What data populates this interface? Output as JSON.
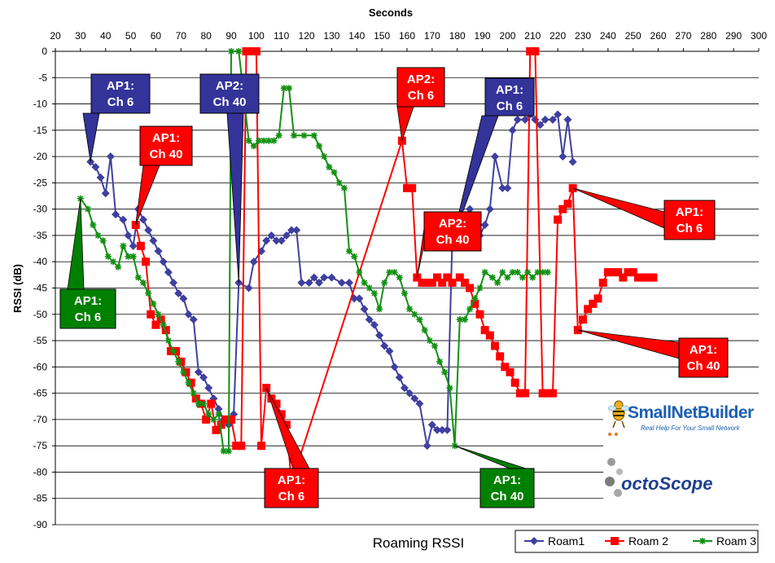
{
  "chart_data": {
    "type": "line",
    "title": "Roaming RSSI",
    "xlabel": "Seconds",
    "ylabel": "RSSI (dB)",
    "xlim": [
      20,
      300
    ],
    "ylim": [
      -90,
      0
    ],
    "xticks": [
      20,
      30,
      40,
      50,
      60,
      70,
      80,
      90,
      100,
      110,
      120,
      130,
      140,
      150,
      160,
      170,
      180,
      190,
      200,
      210,
      220,
      230,
      240,
      250,
      260,
      270,
      280,
      290,
      300
    ],
    "yticks": [
      0,
      -5,
      -10,
      -15,
      -20,
      -25,
      -30,
      -35,
      -40,
      -45,
      -50,
      -55,
      -60,
      -65,
      -70,
      -75,
      -80,
      -85,
      -90
    ],
    "legend_position": "bottom-right",
    "grid": true,
    "series": [
      {
        "name": "Roam1",
        "color": "#3f3f9f",
        "marker": "diamond",
        "points": [
          [
            34,
            -21
          ],
          [
            36,
            -22
          ],
          [
            38,
            -24
          ],
          [
            40,
            -27
          ],
          [
            42,
            -20
          ],
          [
            44,
            -31
          ],
          [
            47,
            -32
          ],
          [
            49,
            -35
          ],
          [
            51,
            -37
          ],
          [
            53,
            -30
          ],
          [
            55,
            -32
          ],
          [
            57,
            -34
          ],
          [
            59,
            -36
          ],
          [
            61,
            -38
          ],
          [
            63,
            -40
          ],
          [
            65,
            -42
          ],
          [
            67,
            -44
          ],
          [
            69,
            -46
          ],
          [
            71,
            -47
          ],
          [
            73,
            -50
          ],
          [
            75,
            -51
          ],
          [
            77,
            -61
          ],
          [
            79,
            -62
          ],
          [
            81,
            -64
          ],
          [
            83,
            -66
          ],
          [
            85,
            -68
          ],
          [
            87,
            -70
          ],
          [
            89,
            -71
          ],
          [
            91,
            -69
          ],
          [
            93,
            -44
          ],
          [
            97,
            -45
          ],
          [
            99,
            -40
          ],
          [
            102,
            -38
          ],
          [
            104,
            -36
          ],
          [
            106,
            -35
          ],
          [
            108,
            -36
          ],
          [
            110,
            -36
          ],
          [
            112,
            -35
          ],
          [
            114,
            -34
          ],
          [
            116,
            -34
          ],
          [
            118,
            -44
          ],
          [
            121,
            -44
          ],
          [
            123,
            -43
          ],
          [
            125,
            -44
          ],
          [
            127,
            -43
          ],
          [
            130,
            -43
          ],
          [
            134,
            -44
          ],
          [
            137,
            -44
          ],
          [
            139,
            -47
          ],
          [
            141,
            -47
          ],
          [
            143,
            -49
          ],
          [
            145,
            -51
          ],
          [
            147,
            -52
          ],
          [
            149,
            -54
          ],
          [
            151,
            -56
          ],
          [
            153,
            -57
          ],
          [
            155,
            -60
          ],
          [
            157,
            -62
          ],
          [
            159,
            -64
          ],
          [
            161,
            -65
          ],
          [
            163,
            -66
          ],
          [
            165,
            -67
          ],
          [
            168,
            -75
          ],
          [
            170,
            -71
          ],
          [
            172,
            -72
          ],
          [
            174,
            -72
          ],
          [
            176,
            -72
          ],
          [
            178,
            -36
          ],
          [
            180,
            -34
          ],
          [
            182,
            -33
          ],
          [
            185,
            -30
          ],
          [
            187,
            -36
          ],
          [
            189,
            -35
          ],
          [
            191,
            -33
          ],
          [
            193,
            -30
          ],
          [
            195,
            -20
          ],
          [
            198,
            -26
          ],
          [
            200,
            -26
          ],
          [
            202,
            -15
          ],
          [
            204,
            -13
          ],
          [
            207,
            -13
          ],
          [
            209,
            -12
          ],
          [
            211,
            -13
          ],
          [
            213,
            -14
          ],
          [
            215,
            -13
          ],
          [
            218,
            -13
          ],
          [
            220,
            -12
          ],
          [
            222,
            -20
          ],
          [
            224,
            -13
          ],
          [
            226,
            -21
          ]
        ]
      },
      {
        "name": "Roam 2",
        "color": "#ff0000",
        "marker": "square",
        "points": [
          [
            52,
            -33
          ],
          [
            54,
            -37
          ],
          [
            56,
            -40
          ],
          [
            58,
            -50
          ],
          [
            60,
            -52
          ],
          [
            62,
            -51
          ],
          [
            64,
            -53
          ],
          [
            66,
            -57
          ],
          [
            68,
            -57
          ],
          [
            70,
            -59
          ],
          [
            72,
            -61
          ],
          [
            74,
            -63
          ],
          [
            76,
            -66
          ],
          [
            78,
            -67
          ],
          [
            80,
            -70
          ],
          [
            82,
            -67
          ],
          [
            84,
            -72
          ],
          [
            86,
            -71
          ],
          [
            88,
            -70
          ],
          [
            90,
            -70
          ],
          [
            92,
            -75
          ],
          [
            94,
            -75
          ],
          [
            96,
            0
          ],
          [
            98,
            0
          ],
          [
            100,
            0
          ],
          [
            102,
            -75
          ],
          [
            104,
            -64
          ],
          [
            106,
            -66
          ],
          [
            108,
            -67
          ],
          [
            110,
            -69
          ],
          [
            112,
            -71
          ],
          [
            114,
            -82
          ],
          [
            158,
            -17
          ],
          [
            160,
            -26
          ],
          [
            162,
            -26
          ],
          [
            164,
            -43
          ],
          [
            166,
            -44
          ],
          [
            168,
            -44
          ],
          [
            170,
            -44
          ],
          [
            172,
            -43
          ],
          [
            174,
            -44
          ],
          [
            176,
            -43
          ],
          [
            178,
            -44
          ],
          [
            181,
            -43
          ],
          [
            183,
            -44
          ],
          [
            185,
            -45
          ],
          [
            187,
            -48
          ],
          [
            189,
            -50
          ],
          [
            191,
            -53
          ],
          [
            193,
            -54
          ],
          [
            195,
            -56
          ],
          [
            197,
            -58
          ],
          [
            199,
            -60
          ],
          [
            201,
            -61
          ],
          [
            203,
            -63
          ],
          [
            205,
            -65
          ],
          [
            207,
            -65
          ],
          [
            209,
            0
          ],
          [
            211,
            0
          ],
          [
            214,
            -65
          ],
          [
            216,
            -65
          ],
          [
            218,
            -65
          ],
          [
            220,
            -32
          ],
          [
            222,
            -30
          ],
          [
            224,
            -29
          ],
          [
            226,
            -26
          ],
          [
            228,
            -53
          ],
          [
            230,
            -51
          ],
          [
            232,
            -49
          ],
          [
            234,
            -48
          ],
          [
            236,
            -47
          ],
          [
            238,
            -44
          ],
          [
            240,
            -42
          ],
          [
            242,
            -42
          ],
          [
            244,
            -42
          ],
          [
            246,
            -43
          ],
          [
            248,
            -42
          ],
          [
            250,
            -42
          ],
          [
            252,
            -43
          ],
          [
            254,
            -43
          ],
          [
            256,
            -43
          ],
          [
            258,
            -43
          ]
        ]
      },
      {
        "name": "Roam 3",
        "color": "#129012",
        "marker": "star",
        "points": [
          [
            30,
            -28
          ],
          [
            33,
            -30
          ],
          [
            35,
            -33
          ],
          [
            37,
            -35
          ],
          [
            39,
            -36
          ],
          [
            41,
            -39
          ],
          [
            43,
            -40
          ],
          [
            45,
            -41
          ],
          [
            47,
            -37
          ],
          [
            49,
            -39
          ],
          [
            51,
            -39
          ],
          [
            53,
            -43
          ],
          [
            55,
            -44
          ],
          [
            57,
            -46
          ],
          [
            59,
            -48
          ],
          [
            61,
            -50
          ],
          [
            63,
            -52
          ],
          [
            65,
            -55
          ],
          [
            67,
            -57
          ],
          [
            69,
            -59
          ],
          [
            71,
            -61
          ],
          [
            73,
            -63
          ],
          [
            75,
            -65
          ],
          [
            77,
            -67
          ],
          [
            79,
            -67
          ],
          [
            81,
            -69
          ],
          [
            83,
            -70
          ],
          [
            85,
            -69
          ],
          [
            87,
            -76
          ],
          [
            89,
            -76
          ],
          [
            90,
            0
          ],
          [
            93,
            0
          ],
          [
            97,
            -17
          ],
          [
            99,
            -18
          ],
          [
            101,
            -17
          ],
          [
            103,
            -17
          ],
          [
            105,
            -17
          ],
          [
            107,
            -17
          ],
          [
            109,
            -16
          ],
          [
            111,
            -7
          ],
          [
            113,
            -7
          ],
          [
            115,
            -16
          ],
          [
            119,
            -16
          ],
          [
            123,
            -16
          ],
          [
            125,
            -18
          ],
          [
            127,
            -20
          ],
          [
            129,
            -22
          ],
          [
            131,
            -23
          ],
          [
            133,
            -25
          ],
          [
            135,
            -26
          ],
          [
            137,
            -38
          ],
          [
            139,
            -39
          ],
          [
            141,
            -42
          ],
          [
            143,
            -44
          ],
          [
            145,
            -45
          ],
          [
            147,
            -46
          ],
          [
            149,
            -49
          ],
          [
            151,
            -44
          ],
          [
            153,
            -42
          ],
          [
            155,
            -42
          ],
          [
            157,
            -43
          ],
          [
            159,
            -46
          ],
          [
            161,
            -49
          ],
          [
            163,
            -50
          ],
          [
            165,
            -51
          ],
          [
            167,
            -53
          ],
          [
            169,
            -55
          ],
          [
            171,
            -56
          ],
          [
            173,
            -59
          ],
          [
            175,
            -61
          ],
          [
            177,
            -64
          ],
          [
            179,
            -75
          ],
          [
            181,
            -51
          ],
          [
            183,
            -51
          ],
          [
            185,
            -49
          ],
          [
            187,
            -47
          ],
          [
            189,
            -45
          ],
          [
            191,
            -42
          ],
          [
            194,
            -43
          ],
          [
            196,
            -44
          ],
          [
            198,
            -42
          ],
          [
            200,
            -43
          ],
          [
            202,
            -42
          ],
          [
            204,
            -42
          ],
          [
            206,
            -43
          ],
          [
            208,
            -42
          ],
          [
            210,
            -43
          ],
          [
            212,
            -42
          ],
          [
            214,
            -42
          ],
          [
            216,
            -42
          ]
        ]
      }
    ],
    "annotations": [
      {
        "line1": "AP1:",
        "line2": "Ch 6",
        "color": "#333399",
        "target": [
          34,
          -21
        ]
      },
      {
        "line1": "AP1:",
        "line2": "Ch 40",
        "color": "#ff0000",
        "target": [
          52,
          -33
        ]
      },
      {
        "line1": "AP2:",
        "line2": "Ch 40",
        "color": "#333399",
        "target": [
          93,
          -44
        ]
      },
      {
        "line1": "AP2:",
        "line2": "Ch 6",
        "color": "#ff0000",
        "target": [
          158,
          -17
        ]
      },
      {
        "line1": "AP1:",
        "line2": "Ch 6",
        "color": "#333399",
        "target": [
          178,
          -36
        ]
      },
      {
        "line1": "AP1:",
        "line2": "Ch 6",
        "color": "#008000",
        "target": [
          30,
          -28
        ]
      },
      {
        "line1": "AP2:",
        "line2": "Ch 40",
        "color": "#ff0000",
        "target": [
          164,
          -43
        ]
      },
      {
        "line1": "AP1:",
        "line2": "Ch 6",
        "color": "#ff0000",
        "target": [
          104,
          -64
        ]
      },
      {
        "line1": "AP1:",
        "line2": "Ch 40",
        "color": "#008000",
        "target": [
          179,
          -75
        ]
      },
      {
        "line1": "AP1:",
        "line2": "Ch 6",
        "color": "#ff0000",
        "target": [
          226,
          -26
        ]
      },
      {
        "line1": "AP1:",
        "line2": "Ch 40",
        "color": "#ff0000",
        "target": [
          228,
          -53
        ]
      }
    ]
  },
  "logos": {
    "snb_name": "SmallNetBuilder",
    "snb_tagline": "Real Help For Your Small Network",
    "octo_name": "octoScope"
  }
}
